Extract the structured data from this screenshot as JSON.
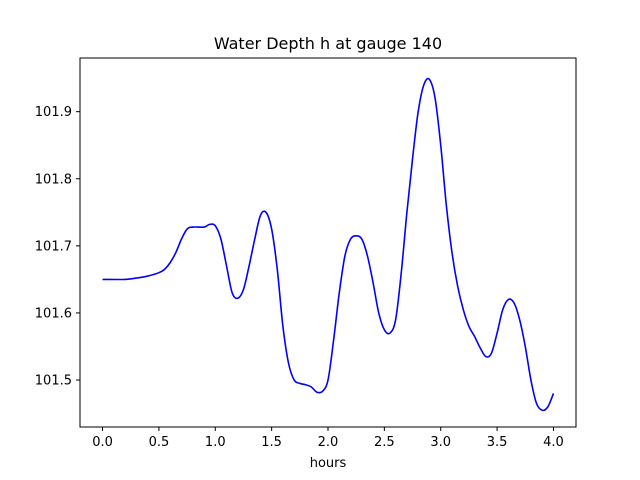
{
  "chart_data": {
    "type": "line",
    "title": "Water Depth h at gauge 140",
    "xlabel": "hours",
    "ylabel": "",
    "xlim": [
      -0.2,
      4.2
    ],
    "ylim": [
      101.43,
      101.98
    ],
    "xticks": [
      0.0,
      0.5,
      1.0,
      1.5,
      2.0,
      2.5,
      3.0,
      3.5,
      4.0
    ],
    "xtick_labels": [
      "0.0",
      "0.5",
      "1.0",
      "1.5",
      "2.0",
      "2.5",
      "3.0",
      "3.5",
      "4.0"
    ],
    "yticks": [
      101.5,
      101.6,
      101.7,
      101.8,
      101.9
    ],
    "ytick_labels": [
      "101.5",
      "101.6",
      "101.7",
      "101.8",
      "101.9"
    ],
    "grid": false,
    "series": [
      {
        "color": "#0000ff",
        "x": [
          0.0,
          0.2,
          0.3,
          0.4,
          0.5,
          0.55,
          0.6,
          0.65,
          0.7,
          0.75,
          0.8,
          0.9,
          0.95,
          1.0,
          1.05,
          1.1,
          1.15,
          1.2,
          1.25,
          1.3,
          1.35,
          1.4,
          1.45,
          1.5,
          1.55,
          1.6,
          1.65,
          1.7,
          1.75,
          1.8,
          1.85,
          1.9,
          1.95,
          2.0,
          2.05,
          2.1,
          2.15,
          2.2,
          2.25,
          2.3,
          2.35,
          2.4,
          2.45,
          2.5,
          2.55,
          2.6,
          2.65,
          2.7,
          2.75,
          2.8,
          2.85,
          2.9,
          2.95,
          3.0,
          3.05,
          3.1,
          3.15,
          3.2,
          3.25,
          3.3,
          3.35,
          3.4,
          3.45,
          3.5,
          3.55,
          3.6,
          3.65,
          3.7,
          3.75,
          3.8,
          3.85,
          3.9,
          3.95,
          4.0
        ],
        "y": [
          101.65,
          101.65,
          101.652,
          101.655,
          101.66,
          101.665,
          101.675,
          101.69,
          101.71,
          101.725,
          101.728,
          101.728,
          101.732,
          101.73,
          101.71,
          101.67,
          101.63,
          101.622,
          101.635,
          101.67,
          101.71,
          101.745,
          101.75,
          101.725,
          101.665,
          101.58,
          101.525,
          101.5,
          101.495,
          101.493,
          101.49,
          101.482,
          101.483,
          101.5,
          101.56,
          101.63,
          101.685,
          101.71,
          101.715,
          101.71,
          101.685,
          101.645,
          101.6,
          101.575,
          101.57,
          101.59,
          101.66,
          101.75,
          101.83,
          101.9,
          101.94,
          101.948,
          101.92,
          101.85,
          101.76,
          101.69,
          101.64,
          101.605,
          101.58,
          101.565,
          101.548,
          101.535,
          101.54,
          101.57,
          101.605,
          101.62,
          101.615,
          101.59,
          101.55,
          101.5,
          101.465,
          101.455,
          101.46,
          101.48
        ]
      }
    ]
  }
}
